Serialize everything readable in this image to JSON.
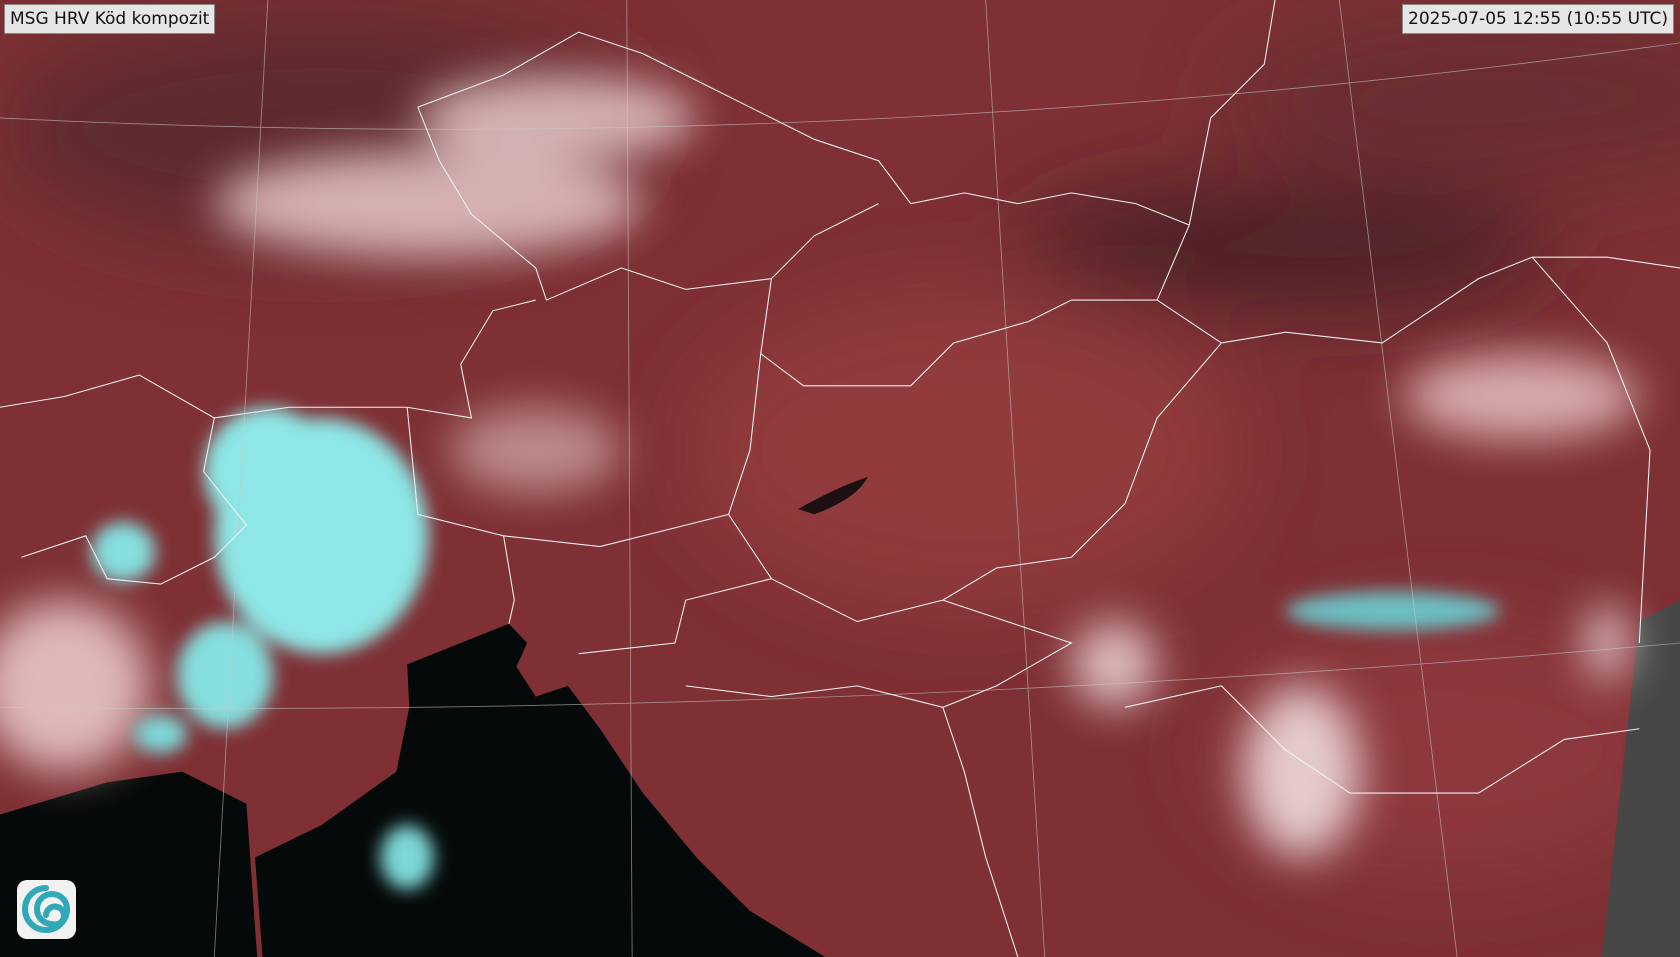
{
  "header": {
    "title": "MSG HRV Köd kompozit",
    "timestamp": "2025-07-05 12:55 (10:55 UTC)"
  }
}
